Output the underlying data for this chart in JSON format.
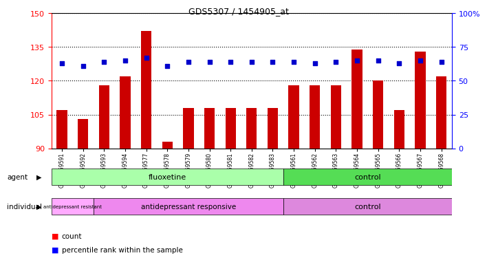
{
  "title": "GDS5307 / 1454905_at",
  "samples": [
    "GSM1059591",
    "GSM1059592",
    "GSM1059593",
    "GSM1059594",
    "GSM1059577",
    "GSM1059578",
    "GSM1059579",
    "GSM1059580",
    "GSM1059581",
    "GSM1059582",
    "GSM1059583",
    "GSM1059561",
    "GSM1059562",
    "GSM1059563",
    "GSM1059564",
    "GSM1059565",
    "GSM1059566",
    "GSM1059567",
    "GSM1059568"
  ],
  "counts": [
    107,
    103,
    118,
    122,
    142,
    93,
    108,
    108,
    108,
    108,
    108,
    118,
    118,
    118,
    134,
    120,
    107,
    133,
    122
  ],
  "percentile_ranks": [
    63,
    61,
    64,
    65,
    67,
    61,
    64,
    64,
    64,
    64,
    64,
    64,
    63,
    64,
    65,
    65,
    63,
    65,
    64
  ],
  "ylim_left": [
    90,
    150
  ],
  "ylim_right": [
    0,
    100
  ],
  "yticks_left": [
    90,
    105,
    120,
    135,
    150
  ],
  "yticks_right": [
    0,
    25,
    50,
    75,
    100
  ],
  "bar_color": "#cc0000",
  "dot_color": "#0000cc",
  "flu_color": "#aaffaa",
  "ctrl_agent_color": "#55dd55",
  "resist_color": "#ffaaff",
  "resp_color": "#ee88ee",
  "ctrl_indiv_color": "#dd88dd",
  "plot_bg": "#ffffff"
}
